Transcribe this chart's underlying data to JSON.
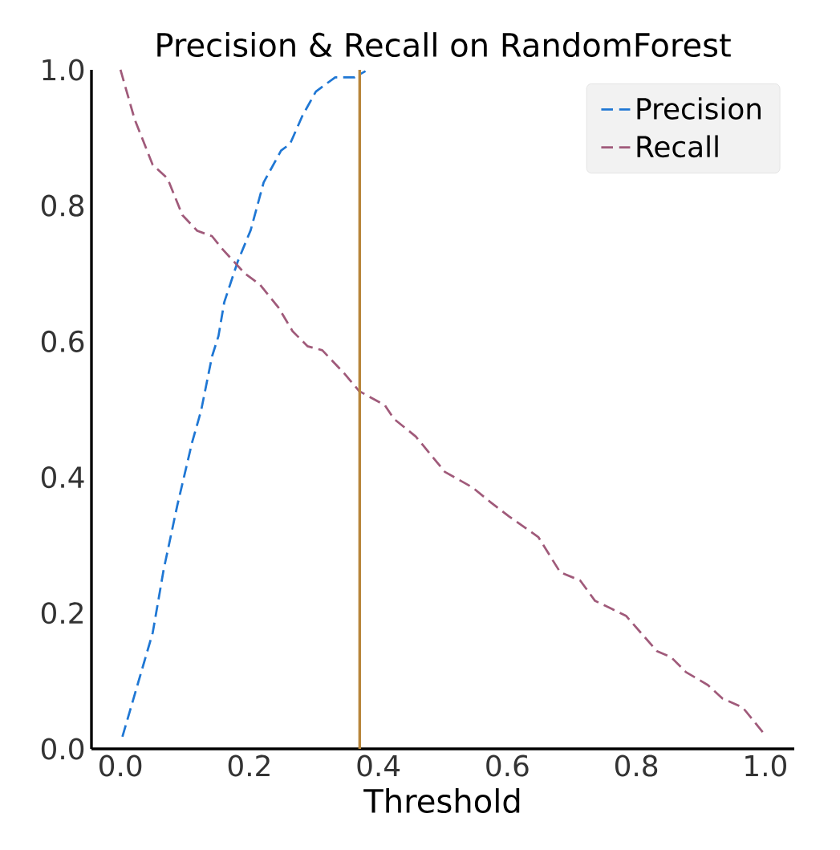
{
  "chart_data": {
    "type": "line",
    "title": "Precision & Recall on RandomForest",
    "xlabel": "Threshold",
    "xlim": [
      -0.045,
      1.045
    ],
    "ylim": [
      0.0,
      1.0
    ],
    "xticks": [
      {
        "value": 0,
        "label": "0.0"
      },
      0.2,
      0.4,
      0.6,
      0.8,
      {
        "value": 1,
        "label": "1.0"
      }
    ],
    "yticks": [
      {
        "value": 0,
        "label": "0.0"
      },
      0.2,
      0.4,
      0.6,
      0.8,
      {
        "value": 1,
        "label": "1.0"
      }
    ],
    "line_style": "dashed",
    "grid": false,
    "legend": "top right",
    "series": [
      {
        "name": "Precision",
        "color": "#1f77d4",
        "x": [
          0.003,
          0.05,
          0.067,
          0.088,
          0.111,
          0.125,
          0.142,
          0.152,
          0.161,
          0.182,
          0.202,
          0.222,
          0.249,
          0.263,
          0.282,
          0.303,
          0.333,
          0.363,
          0.38
        ],
        "values": [
          0.018,
          0.171,
          0.264,
          0.358,
          0.451,
          0.498,
          0.578,
          0.608,
          0.658,
          0.718,
          0.764,
          0.834,
          0.881,
          0.891,
          0.932,
          0.968,
          0.989,
          0.989,
          0.998
        ]
      },
      {
        "name": "Recall",
        "color": "#a05a7a",
        "x": [
          0.0,
          0.022,
          0.05,
          0.073,
          0.096,
          0.119,
          0.142,
          0.159,
          0.193,
          0.216,
          0.245,
          0.267,
          0.29,
          0.313,
          0.347,
          0.37,
          0.41,
          0.424,
          0.458,
          0.503,
          0.546,
          0.573,
          0.603,
          0.648,
          0.682,
          0.713,
          0.736,
          0.784,
          0.832,
          0.854,
          0.877,
          0.911,
          0.934,
          0.965,
          1.0
        ],
        "values": [
          1.0,
          0.927,
          0.86,
          0.84,
          0.786,
          0.763,
          0.755,
          0.735,
          0.7,
          0.684,
          0.65,
          0.615,
          0.593,
          0.587,
          0.553,
          0.527,
          0.506,
          0.486,
          0.46,
          0.408,
          0.385,
          0.364,
          0.342,
          0.312,
          0.26,
          0.248,
          0.218,
          0.196,
          0.144,
          0.135,
          0.113,
          0.094,
          0.074,
          0.061,
          0.02
        ]
      }
    ],
    "ref_lines": [
      {
        "axis": "x",
        "value": 0.371,
        "color": "#b8863b",
        "line_style": "solid"
      }
    ]
  }
}
